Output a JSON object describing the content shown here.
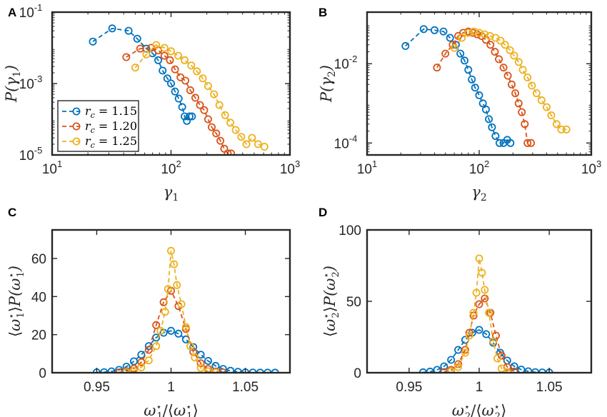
{
  "colors": {
    "s1": "#0072BD",
    "s2": "#D95319",
    "s3": "#EDB120"
  },
  "chart_data": [
    {
      "panel": "A",
      "type": "line",
      "xscale": "log",
      "yscale": "log",
      "xlim": [
        10,
        1000
      ],
      "ylim": [
        1e-05,
        0.1
      ],
      "xticks": [
        {
          "v": 10,
          "base": "10",
          "exp": "1"
        },
        {
          "v": 100,
          "base": "10",
          "exp": "2"
        },
        {
          "v": 1000,
          "base": "10",
          "exp": "3"
        }
      ],
      "yticks": [
        {
          "v": 1e-05,
          "base": "10",
          "exp": "-5"
        },
        {
          "v": 0.001,
          "base": "10",
          "exp": "-3"
        },
        {
          "v": 0.1,
          "base": "10",
          "exp": "-1"
        }
      ],
      "xlabel": {
        "sym": "γ",
        "sub": "1"
      },
      "ylabel": {
        "pre": "P(",
        "sym": "γ",
        "sub": "1",
        "post": ")"
      },
      "legend": {
        "position": "bottom-left",
        "entries": [
          {
            "lhs": "r",
            "sub": "c",
            "rhs": " = 1.15"
          },
          {
            "lhs": "r",
            "sub": "c",
            "rhs": " = 1.20"
          },
          {
            "lhs": "r",
            "sub": "c",
            "rhs": " = 1.25"
          }
        ]
      },
      "series": [
        {
          "color": "s1",
          "x": [
            22,
            32,
            44,
            52,
            62,
            70,
            78,
            85,
            93,
            100,
            108,
            116,
            124,
            130,
            136,
            143,
            150
          ],
          "y": [
            0.015,
            0.035,
            0.03,
            0.018,
            0.0095,
            0.007,
            0.0045,
            0.0023,
            0.0014,
            0.001,
            0.0006,
            0.00038,
            0.00022,
            0.00012,
            9e-05,
            0.00012,
            0.00012
          ]
        },
        {
          "color": "s2",
          "x": [
            42,
            55,
            68,
            78,
            88,
            98,
            108,
            120,
            132,
            145,
            160,
            175,
            190,
            205,
            220,
            240,
            260,
            280,
            300,
            320
          ],
          "y": [
            0.0055,
            0.0095,
            0.01,
            0.0085,
            0.006,
            0.0045,
            0.0025,
            0.0015,
            0.0012,
            0.00065,
            0.0004,
            0.00025,
            0.00018,
            0.0001,
            6e-05,
            4e-05,
            2.5e-05,
            1.5e-05,
            1.1e-05,
            1.1e-05
          ]
        },
        {
          "color": "s3",
          "x": [
            50,
            62,
            75,
            88,
            100,
            115,
            130,
            148,
            165,
            185,
            205,
            230,
            255,
            285,
            315,
            350,
            390,
            430,
            480,
            540,
            610
          ],
          "y": [
            0.0028,
            0.0065,
            0.012,
            0.01,
            0.008,
            0.006,
            0.0045,
            0.0032,
            0.0022,
            0.0014,
            0.00085,
            0.0005,
            0.00025,
            0.00013,
            8e-05,
            5e-05,
            3.2e-05,
            2e-05,
            3e-05,
            2e-05,
            1.7e-05
          ]
        }
      ]
    },
    {
      "panel": "B",
      "type": "line",
      "xscale": "log",
      "yscale": "log",
      "xlim": [
        10,
        1000
      ],
      "ylim": [
        5e-05,
        0.2
      ],
      "xticks": [
        {
          "v": 10,
          "base": "10",
          "exp": "1"
        },
        {
          "v": 100,
          "base": "10",
          "exp": "2"
        },
        {
          "v": 1000,
          "base": "10",
          "exp": "3"
        }
      ],
      "yticks": [
        {
          "v": 0.0001,
          "base": "10",
          "exp": "-4"
        },
        {
          "v": 0.01,
          "base": "10",
          "exp": "-2"
        }
      ],
      "xlabel": {
        "sym": "γ",
        "sub": "2"
      },
      "ylabel": {
        "pre": "P(",
        "sym": "γ",
        "sub": "2",
        "post": ")"
      },
      "series": [
        {
          "color": "s1",
          "x": [
            22,
            32,
            40,
            48,
            55,
            62,
            68,
            74,
            80,
            86,
            92,
            100,
            108,
            115,
            122,
            130,
            140,
            152,
            165,
            178,
            190
          ],
          "y": [
            0.028,
            0.075,
            0.07,
            0.065,
            0.045,
            0.03,
            0.018,
            0.012,
            0.007,
            0.004,
            0.0025,
            0.0016,
            0.001,
            0.0007,
            0.0004,
            0.00025,
            0.00015,
            0.0001,
            0.0001,
            0.00012,
            0.0001
          ]
        },
        {
          "color": "s2",
          "x": [
            42,
            50,
            58,
            65,
            72,
            80,
            88,
            96,
            105,
            115,
            126,
            138,
            150,
            165,
            180,
            195,
            210,
            225,
            240,
            255,
            270,
            290
          ],
          "y": [
            0.008,
            0.018,
            0.03,
            0.05,
            0.06,
            0.065,
            0.06,
            0.055,
            0.05,
            0.04,
            0.03,
            0.02,
            0.013,
            0.008,
            0.005,
            0.003,
            0.0018,
            0.001,
            0.0006,
            0.0003,
            0.0001,
            0.0001
          ]
        },
        {
          "color": "s3",
          "x": [
            60,
            70,
            80,
            90,
            100,
            112,
            125,
            140,
            155,
            170,
            188,
            205,
            225,
            245,
            270,
            295,
            325,
            360,
            400,
            440,
            490,
            540,
            600
          ],
          "y": [
            0.025,
            0.045,
            0.06,
            0.065,
            0.06,
            0.055,
            0.05,
            0.045,
            0.038,
            0.03,
            0.022,
            0.016,
            0.011,
            0.007,
            0.0045,
            0.0028,
            0.0018,
            0.0012,
            0.0008,
            0.0005,
            0.0003,
            0.00022,
            0.00022
          ]
        }
      ]
    },
    {
      "panel": "C",
      "type": "line",
      "xlim": [
        0.92,
        1.08
      ],
      "ylim": [
        0,
        75
      ],
      "xticks": [
        0.95,
        1,
        1.05
      ],
      "yticks": [
        0,
        20,
        40,
        60
      ],
      "xlabel": {
        "w": "ω",
        "idx": "1"
      },
      "ylabel": {
        "w": "ω",
        "idx": "1"
      },
      "series": [
        {
          "color": "s1",
          "x": [
            0.95,
            0.955,
            0.96,
            0.965,
            0.97,
            0.975,
            0.98,
            0.985,
            0.99,
            0.995,
            1.0,
            1.005,
            1.01,
            1.015,
            1.02,
            1.025,
            1.03,
            1.035,
            1.04,
            1.045,
            1.05,
            1.055,
            1.06,
            1.065,
            1.07
          ],
          "y": [
            0.2,
            0.3,
            0.7,
            1.5,
            3.2,
            6.0,
            9.5,
            14,
            18.5,
            21,
            22,
            20.5,
            17.5,
            13.5,
            9.5,
            6.2,
            3.6,
            2.0,
            1.0,
            0.5,
            0.2,
            0.1,
            0.05,
            0.05,
            0.05
          ]
        },
        {
          "color": "s2",
          "x": [
            0.965,
            0.97,
            0.975,
            0.98,
            0.985,
            0.99,
            0.995,
            1.0,
            1.005,
            1.01,
            1.015,
            1.02,
            1.025,
            1.03,
            1.035
          ],
          "y": [
            0.2,
            0.8,
            2.2,
            5.5,
            12,
            25,
            37,
            43,
            35,
            23,
            11,
            5,
            2,
            0.6,
            0.2
          ]
        },
        {
          "color": "s3",
          "x": [
            0.97,
            0.975,
            0.98,
            0.985,
            0.99,
            0.993,
            0.996,
            0.998,
            1.0,
            1.002,
            1.004,
            1.007,
            1.01,
            1.013,
            1.016,
            1.02,
            1.025,
            1.03
          ],
          "y": [
            0.3,
            1.0,
            2.8,
            6.5,
            14,
            22,
            32,
            44,
            64,
            57,
            46,
            36,
            24,
            14,
            8,
            2.5,
            0.8,
            0.2
          ]
        }
      ]
    },
    {
      "panel": "D",
      "type": "line",
      "xlim": [
        0.92,
        1.08
      ],
      "ylim": [
        0,
        100
      ],
      "xticks": [
        0.95,
        1,
        1.05
      ],
      "yticks": [
        0,
        50,
        100
      ],
      "xlabel": {
        "w": "ω",
        "idx": "2"
      },
      "ylabel": {
        "w": "ω",
        "idx": "2"
      },
      "series": [
        {
          "color": "s1",
          "x": [
            0.96,
            0.965,
            0.97,
            0.975,
            0.98,
            0.985,
            0.99,
            0.995,
            1.0,
            1.005,
            1.01,
            1.015,
            1.02,
            1.025,
            1.03,
            1.035,
            1.04,
            1.045,
            1.05
          ],
          "y": [
            0.3,
            0.8,
            2,
            4.5,
            9,
            16,
            23,
            28,
            30,
            27,
            21,
            14,
            8.5,
            4.5,
            2.2,
            1,
            0.4,
            0.2,
            0.1
          ]
        },
        {
          "color": "s2",
          "x": [
            0.975,
            0.98,
            0.985,
            0.99,
            0.993,
            0.996,
            1.0,
            1.004,
            1.008,
            1.012,
            1.016,
            1.02,
            1.025
          ],
          "y": [
            0.5,
            2,
            6,
            16,
            28,
            40,
            48,
            52,
            42,
            26,
            12,
            4,
            0.8
          ]
        },
        {
          "color": "s3",
          "x": [
            0.98,
            0.985,
            0.99,
            0.993,
            0.996,
            0.998,
            1.0,
            1.002,
            1.004,
            1.007,
            1.01,
            1.013,
            1.016,
            1.02
          ],
          "y": [
            1,
            4,
            14,
            26,
            42,
            56,
            80,
            70,
            58,
            42,
            22,
            10,
            3,
            0.5
          ]
        }
      ]
    }
  ]
}
